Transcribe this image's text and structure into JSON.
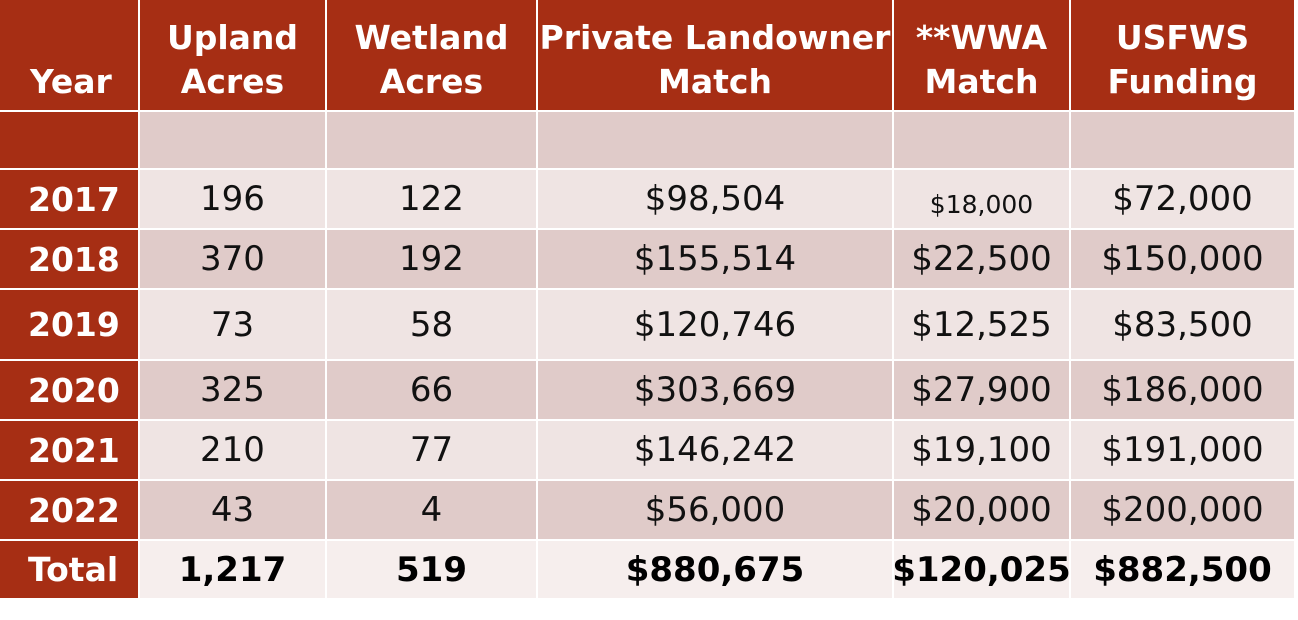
{
  "headers": {
    "year": "Year",
    "upland": [
      "Upland",
      "Acres"
    ],
    "wetland": [
      "Wetland",
      "Acres"
    ],
    "private": [
      "Private Landowner",
      "Match"
    ],
    "wwa": [
      "**WWA",
      "Match"
    ],
    "usfws": [
      "USFWS",
      "Funding"
    ]
  },
  "rows": [
    {
      "year": "2017",
      "upland": "196",
      "wetland": "122",
      "private": "$98,504",
      "wwa": "$18,000",
      "usfws": "$72,000"
    },
    {
      "year": "2018",
      "upland": "370",
      "wetland": "192",
      "private": "$155,514",
      "wwa": "$22,500",
      "usfws": "$150,000"
    },
    {
      "year": "2019",
      "upland": "73",
      "wetland": "58",
      "private": "$120,746",
      "wwa": "$12,525",
      "usfws": "$83,500"
    },
    {
      "year": "2020",
      "upland": "325",
      "wetland": "66",
      "private": "$303,669",
      "wwa": "$27,900",
      "usfws": "$186,000"
    },
    {
      "year": "2021",
      "upland": "210",
      "wetland": "77",
      "private": "$146,242",
      "wwa": "$19,100",
      "usfws": "$191,000"
    },
    {
      "year": "2022",
      "upland": "43",
      "wetland": "4",
      "private": "$56,000",
      "wwa": "$20,000",
      "usfws": "$200,000"
    }
  ],
  "total": {
    "year": "Total",
    "upland": "1,217",
    "wetland": "519",
    "private": "$880,675",
    "wwa": "$120,025",
    "usfws": "$882,500"
  },
  "colors": {
    "header_bg": "#a62e14",
    "row_light": "#efe4e3",
    "row_dark": "#e0cbc9",
    "header_text": "#ffffff"
  }
}
